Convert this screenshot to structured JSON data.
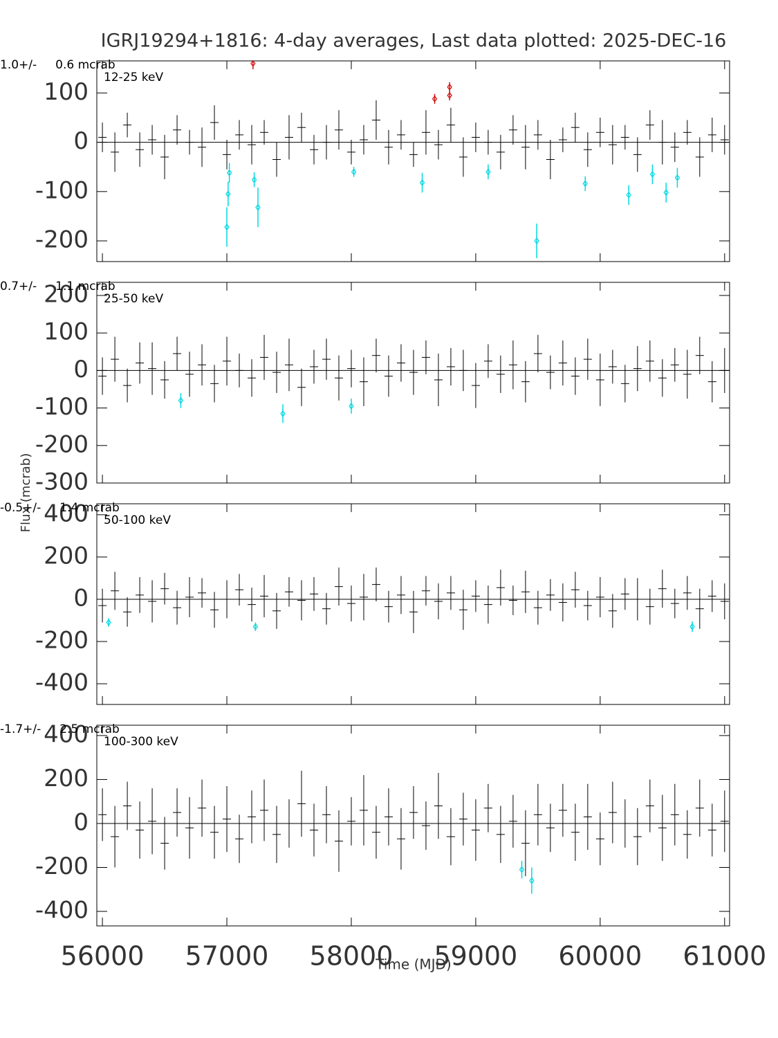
{
  "figure": {
    "title": "IGRJ19294+1816:  4-day averages,  Last data plotted: 2025-DEC-16",
    "x_label": "Time (MJD)",
    "y_label": "Flux (mcrab)",
    "xlim": [
      55955,
      61040
    ],
    "xticks": [
      56000,
      57000,
      58000,
      59000,
      60000,
      61000
    ]
  },
  "chart_data": [
    {
      "type": "errorbar",
      "label": "1.0+/-     0.6 mcrab",
      "band": "12-25 keV",
      "ylim": [
        -242,
        165
      ],
      "yticks": [
        -200,
        -100,
        0,
        100
      ],
      "series": [
        {
          "color": "#000000",
          "x": [
            56000,
            56100,
            56200,
            56300,
            56400,
            56500,
            56600,
            56700,
            56800,
            56900,
            57000,
            57100,
            57200,
            57300,
            57400,
            57500,
            57600,
            57700,
            57800,
            57900,
            58000,
            58100,
            58200,
            58300,
            58400,
            58500,
            58600,
            58700,
            58800,
            58900,
            59000,
            59100,
            59200,
            59300,
            59400,
            59500,
            59600,
            59700,
            59800,
            59900,
            60000,
            60100,
            60200,
            60300,
            60400,
            60500,
            60600,
            60700,
            60800,
            60900,
            61000
          ],
          "values": [
            10,
            -20,
            35,
            -15,
            5,
            -30,
            25,
            0,
            -10,
            40,
            -25,
            15,
            -5,
            20,
            -35,
            10,
            30,
            -15,
            0,
            25,
            -20,
            5,
            45,
            -10,
            15,
            -25,
            20,
            -5,
            35,
            -30,
            10,
            0,
            -20,
            25,
            -10,
            15,
            -35,
            5,
            30,
            -15,
            20,
            -5,
            10,
            -25,
            35,
            0,
            -10,
            20,
            -30,
            15,
            5
          ],
          "errors": [
            30,
            40,
            25,
            35,
            30,
            45,
            30,
            25,
            40,
            35,
            30,
            30,
            40,
            25,
            35,
            45,
            30,
            30,
            35,
            40,
            25,
            30,
            40,
            35,
            30,
            25,
            45,
            30,
            35,
            40,
            30,
            25,
            35,
            30,
            45,
            30,
            40,
            25,
            30,
            35,
            30,
            40,
            25,
            35,
            30,
            45,
            30,
            25,
            40,
            35,
            30
          ]
        },
        {
          "color": "#00d8e0",
          "x": [
            57000,
            57010,
            57020,
            57220,
            57250,
            58020,
            58570,
            59100,
            59490,
            59880,
            60230,
            60420,
            60530,
            60620
          ],
          "values": [
            -172,
            -105,
            -62,
            -76,
            -132,
            -60,
            -82,
            -60,
            -200,
            -84,
            -107,
            -65,
            -102,
            -72
          ],
          "errors": [
            40,
            25,
            20,
            15,
            40,
            10,
            20,
            15,
            35,
            15,
            20,
            20,
            20,
            20
          ]
        },
        {
          "color": "#d01010",
          "x": [
            57210,
            58670,
            58790,
            58790
          ],
          "values": [
            160,
            88,
            112,
            95
          ],
          "errors": [
            12,
            10,
            10,
            10
          ]
        }
      ]
    },
    {
      "type": "errorbar",
      "label": "0.7+/-     1.1 mcrab",
      "band": "25-50 keV",
      "ylim": [
        -300,
        235
      ],
      "yticks": [
        -300,
        -200,
        -100,
        0,
        100,
        200
      ],
      "series": [
        {
          "color": "#000000",
          "x": [
            56000,
            56100,
            56200,
            56300,
            56400,
            56500,
            56600,
            56700,
            56800,
            56900,
            57000,
            57100,
            57200,
            57300,
            57400,
            57500,
            57600,
            57700,
            57800,
            57900,
            58000,
            58100,
            58200,
            58300,
            58400,
            58500,
            58600,
            58700,
            58800,
            58900,
            59000,
            59100,
            59200,
            59300,
            59400,
            59500,
            59600,
            59700,
            59800,
            59900,
            60000,
            60100,
            60200,
            60300,
            60400,
            60500,
            60600,
            60700,
            60800,
            60900,
            61000
          ],
          "values": [
            -15,
            30,
            -40,
            20,
            5,
            -25,
            45,
            -10,
            15,
            -35,
            25,
            0,
            -20,
            35,
            -5,
            15,
            -45,
            10,
            30,
            -20,
            5,
            -30,
            40,
            -15,
            20,
            -5,
            35,
            -25,
            10,
            0,
            -40,
            25,
            -10,
            15,
            -30,
            45,
            -5,
            20,
            -15,
            30,
            -25,
            10,
            -35,
            5,
            25,
            -20,
            15,
            -10,
            40,
            -30,
            0
          ],
          "errors": [
            50,
            60,
            45,
            55,
            70,
            50,
            45,
            60,
            55,
            50,
            65,
            45,
            50,
            60,
            55,
            70,
            50,
            45,
            55,
            60,
            50,
            65,
            45,
            55,
            50,
            60,
            45,
            70,
            50,
            55,
            60,
            45,
            50,
            65,
            55,
            50,
            45,
            60,
            50,
            55,
            70,
            45,
            50,
            60,
            55,
            50,
            45,
            65,
            50,
            55,
            60
          ]
        },
        {
          "color": "#00d8e0",
          "x": [
            56630,
            57450,
            58000
          ],
          "values": [
            -80,
            -115,
            -95
          ],
          "errors": [
            20,
            25,
            20
          ]
        }
      ]
    },
    {
      "type": "errorbar",
      "label": "-0.5+/-     1.4 mcrab",
      "band": "50-100 keV",
      "ylim": [
        -498,
        452
      ],
      "yticks": [
        -400,
        -200,
        0,
        200,
        400
      ],
      "series": [
        {
          "color": "#000000",
          "x": [
            56000,
            56100,
            56200,
            56300,
            56400,
            56500,
            56600,
            56700,
            56800,
            56900,
            57000,
            57100,
            57200,
            57300,
            57400,
            57500,
            57600,
            57700,
            57800,
            57900,
            58000,
            58100,
            58200,
            58300,
            58400,
            58500,
            58600,
            58700,
            58800,
            58900,
            59000,
            59100,
            59200,
            59300,
            59400,
            59500,
            59600,
            59700,
            59800,
            59900,
            60000,
            60100,
            60200,
            60300,
            60400,
            60500,
            60600,
            60700,
            60800,
            60900,
            61000
          ],
          "values": [
            -30,
            40,
            -60,
            20,
            -10,
            50,
            -40,
            10,
            30,
            -50,
            0,
            45,
            -25,
            15,
            -55,
            35,
            -5,
            25,
            -45,
            60,
            -20,
            10,
            70,
            -35,
            20,
            -60,
            40,
            -10,
            30,
            -50,
            15,
            -25,
            55,
            -5,
            35,
            -40,
            20,
            -15,
            45,
            -30,
            10,
            -55,
            25,
            0,
            -35,
            50,
            -20,
            30,
            -45,
            15,
            -10
          ],
          "errors": [
            80,
            90,
            70,
            85,
            100,
            75,
            80,
            95,
            70,
            85,
            90,
            75,
            80,
            100,
            85,
            70,
            95,
            80,
            75,
            90,
            85,
            110,
            80,
            75,
            90,
            100,
            70,
            85,
            80,
            95,
            75,
            90,
            85,
            70,
            100,
            80,
            75,
            90,
            85,
            70,
            95,
            80,
            75,
            100,
            85,
            90,
            70,
            80,
            95,
            75,
            85
          ]
        },
        {
          "color": "#00d8e0",
          "x": [
            56050,
            57230,
            60740
          ],
          "values": [
            -110,
            -130,
            -130
          ],
          "errors": [
            20,
            20,
            25
          ]
        }
      ]
    },
    {
      "type": "errorbar",
      "label": "-1.7+/-     2.5 mcrab",
      "band": "100-300 keV",
      "ylim": [
        -466,
        447
      ],
      "yticks": [
        -400,
        -200,
        0,
        200,
        400
      ],
      "series": [
        {
          "color": "#000000",
          "x": [
            56000,
            56100,
            56200,
            56300,
            56400,
            56500,
            56600,
            56700,
            56800,
            56900,
            57000,
            57100,
            57200,
            57300,
            57400,
            57500,
            57600,
            57700,
            57800,
            57900,
            58000,
            58100,
            58200,
            58300,
            58400,
            58500,
            58600,
            58700,
            58800,
            58900,
            59000,
            59100,
            59200,
            59300,
            59400,
            59500,
            59600,
            59700,
            59800,
            59900,
            60000,
            60100,
            60200,
            60300,
            60400,
            60500,
            60600,
            60700,
            60800,
            60900,
            61000
          ],
          "values": [
            40,
            -60,
            80,
            -30,
            10,
            -90,
            50,
            -20,
            70,
            -40,
            20,
            -70,
            30,
            60,
            -50,
            0,
            90,
            -30,
            40,
            -80,
            10,
            60,
            -40,
            30,
            -70,
            50,
            -10,
            80,
            -60,
            20,
            -30,
            70,
            -50,
            10,
            -90,
            40,
            -20,
            60,
            -40,
            30,
            -70,
            50,
            0,
            -60,
            80,
            -20,
            40,
            -50,
            70,
            -30,
            10
          ],
          "errors": [
            120,
            140,
            110,
            130,
            150,
            120,
            110,
            140,
            130,
            120,
            150,
            110,
            120,
            140,
            130,
            110,
            150,
            120,
            130,
            140,
            110,
            160,
            120,
            130,
            140,
            120,
            110,
            150,
            130,
            120,
            140,
            110,
            130,
            120,
            150,
            140,
            110,
            120,
            130,
            150,
            120,
            140,
            110,
            130,
            120,
            150,
            140,
            110,
            130,
            120,
            140
          ]
        },
        {
          "color": "#00d8e0",
          "x": [
            59370,
            59450
          ],
          "values": [
            -210,
            -260
          ],
          "errors": [
            40,
            60
          ]
        }
      ]
    }
  ]
}
